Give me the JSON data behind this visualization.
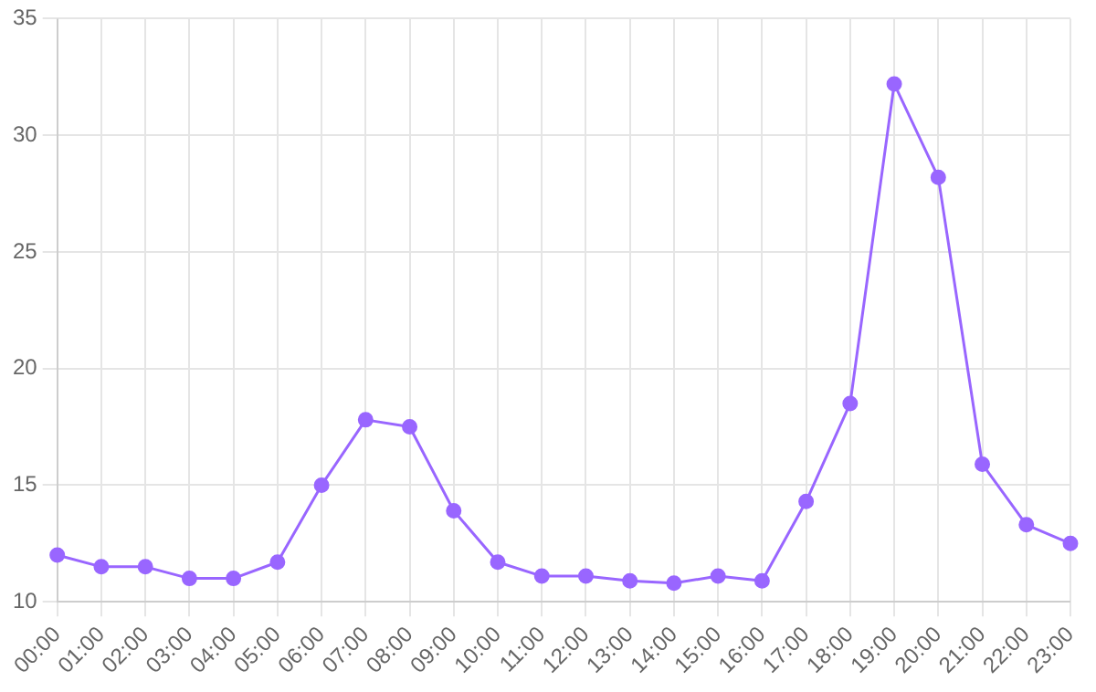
{
  "chart_data": {
    "type": "line",
    "categories": [
      "00:00",
      "01:00",
      "02:00",
      "03:00",
      "04:00",
      "05:00",
      "06:00",
      "07:00",
      "08:00",
      "09:00",
      "10:00",
      "11:00",
      "12:00",
      "13:00",
      "14:00",
      "15:00",
      "16:00",
      "17:00",
      "18:00",
      "19:00",
      "20:00",
      "21:00",
      "22:00",
      "23:00"
    ],
    "series": [
      {
        "color": "#9966ff",
        "values": [
          12,
          11.5,
          11.5,
          11,
          11,
          11.7,
          15,
          17.8,
          17.5,
          13.9,
          11.7,
          11.1,
          11.1,
          10.9,
          10.8,
          11.1,
          10.9,
          14.3,
          18.5,
          32.2,
          28.2,
          15.9,
          13.3,
          12.5
        ]
      }
    ],
    "ylim": [
      10,
      35
    ],
    "yticks": [
      10,
      15,
      20,
      25,
      30,
      35
    ],
    "grid": true,
    "legend": false,
    "marker": "circle",
    "line_style": "solid"
  }
}
